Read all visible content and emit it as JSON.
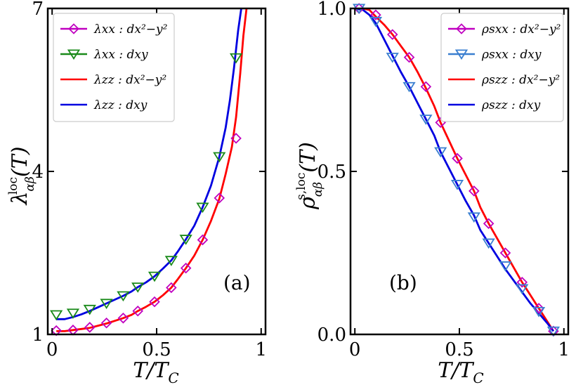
{
  "chart_data": [
    {
      "type": "line",
      "panel": "(a)",
      "xlabel": "T/T_C",
      "ylabel": "λ^loc_αβ(T)",
      "xlim": [
        0,
        1
      ],
      "ylim": [
        1,
        7
      ],
      "xticks": [
        0,
        0.5,
        1
      ],
      "xtick_labels": [
        "0",
        "0.5",
        "1"
      ],
      "yticks": [
        1,
        4,
        7
      ],
      "ytick_labels": [
        "1",
        "4",
        "7"
      ],
      "legend_position": "top-left",
      "series": [
        {
          "name": "λ_xx : d_{x²−y²}",
          "legend_label": "λxx : dx²−y²",
          "style": "markers",
          "marker": "diamond",
          "color": "#c000c0",
          "x": [
            0.02,
            0.1,
            0.18,
            0.26,
            0.34,
            0.41,
            0.49,
            0.57,
            0.64,
            0.72,
            0.8,
            0.88
          ],
          "y": [
            1.07,
            1.08,
            1.13,
            1.21,
            1.3,
            1.43,
            1.6,
            1.86,
            2.22,
            2.74,
            3.51,
            4.61
          ]
        },
        {
          "name": "λ_xx : d_xy",
          "legend_label": "λxx : dxy",
          "style": "markers",
          "marker": "triangle-down",
          "color": "#1a8a1a",
          "x": [
            0.02,
            0.1,
            0.18,
            0.26,
            0.34,
            0.41,
            0.49,
            0.57,
            0.64,
            0.72,
            0.8,
            0.88
          ],
          "y": [
            1.36,
            1.39,
            1.46,
            1.57,
            1.71,
            1.87,
            2.07,
            2.36,
            2.75,
            3.34,
            4.27,
            6.09
          ]
        },
        {
          "name": "λ_zz : d_{x²−y²}",
          "legend_label": "λzz : dx²−y²",
          "style": "line",
          "color": "#ff0000",
          "x": [
            0.02,
            0.06,
            0.1,
            0.14,
            0.18,
            0.22,
            0.26,
            0.3,
            0.34,
            0.38,
            0.41,
            0.45,
            0.49,
            0.53,
            0.57,
            0.6,
            0.64,
            0.68,
            0.72,
            0.76,
            0.8,
            0.83,
            0.86,
            0.88,
            0.9,
            0.915,
            0.93
          ],
          "y": [
            1.06,
            1.06,
            1.08,
            1.1,
            1.12,
            1.16,
            1.2,
            1.25,
            1.3,
            1.36,
            1.43,
            1.51,
            1.6,
            1.72,
            1.86,
            2.01,
            2.22,
            2.45,
            2.74,
            3.09,
            3.5,
            3.95,
            4.45,
            5.0,
            5.8,
            6.5,
            7.0
          ]
        },
        {
          "name": "λ_zz : d_xy",
          "legend_label": "λzz : dxy",
          "style": "line",
          "color": "#0000e0",
          "x": [
            0.02,
            0.06,
            0.1,
            0.14,
            0.18,
            0.22,
            0.26,
            0.3,
            0.34,
            0.38,
            0.41,
            0.45,
            0.49,
            0.53,
            0.57,
            0.6,
            0.64,
            0.68,
            0.72,
            0.76,
            0.8,
            0.83,
            0.85,
            0.87,
            0.89,
            0.905
          ],
          "y": [
            1.28,
            1.28,
            1.32,
            1.37,
            1.43,
            1.5,
            1.57,
            1.64,
            1.71,
            1.79,
            1.87,
            1.96,
            2.07,
            2.21,
            2.36,
            2.52,
            2.75,
            3.0,
            3.34,
            3.74,
            4.27,
            4.8,
            5.3,
            5.9,
            6.6,
            7.0
          ]
        }
      ]
    },
    {
      "type": "line",
      "panel": "(b)",
      "xlabel": "T/T_C",
      "ylabel": "ρ^{s,loc}_αβ(T)",
      "xlim": [
        0,
        1
      ],
      "ylim": [
        0,
        1
      ],
      "xticks": [
        0,
        0.5,
        1
      ],
      "xtick_labels": [
        "0",
        "0.5",
        "1"
      ],
      "yticks": [
        0,
        0.5,
        1
      ],
      "ytick_labels": [
        "0.0",
        "0.5",
        "1.0"
      ],
      "legend_position": "top-right",
      "series": [
        {
          "name": "ρ^s_xx : d_{x²−y²}",
          "legend_label": "ρsxx : dx²−y²",
          "style": "markers",
          "marker": "diamond",
          "color": "#c000c0",
          "x": [
            0.02,
            0.1,
            0.18,
            0.26,
            0.34,
            0.41,
            0.49,
            0.57,
            0.64,
            0.72,
            0.8,
            0.88,
            0.95
          ],
          "y": [
            1.0,
            0.98,
            0.92,
            0.85,
            0.76,
            0.65,
            0.54,
            0.44,
            0.34,
            0.25,
            0.16,
            0.08,
            0.01
          ]
        },
        {
          "name": "ρ^s_xx : d_xy",
          "legend_label": "ρsxx : dxy",
          "style": "markers",
          "marker": "triangle-down",
          "color": "#3a7fd0",
          "x": [
            0.02,
            0.1,
            0.18,
            0.26,
            0.34,
            0.41,
            0.49,
            0.57,
            0.64,
            0.72,
            0.8,
            0.88,
            0.95
          ],
          "y": [
            1.0,
            0.96,
            0.85,
            0.76,
            0.66,
            0.56,
            0.46,
            0.36,
            0.28,
            0.21,
            0.14,
            0.07,
            0.01
          ]
        },
        {
          "name": "ρ^s_zz : d_{x²−y²}",
          "legend_label": "ρszz : dx²−y²",
          "style": "line",
          "color": "#ff0000",
          "x": [
            0.0,
            0.04,
            0.07,
            0.1,
            0.14,
            0.18,
            0.22,
            0.26,
            0.3,
            0.34,
            0.38,
            0.41,
            0.45,
            0.49,
            0.53,
            0.57,
            0.6,
            0.64,
            0.68,
            0.72,
            0.76,
            0.8,
            0.84,
            0.88,
            0.92,
            0.95
          ],
          "y": [
            1.0,
            1.0,
            0.995,
            0.975,
            0.95,
            0.92,
            0.885,
            0.85,
            0.805,
            0.755,
            0.7,
            0.65,
            0.595,
            0.54,
            0.49,
            0.44,
            0.39,
            0.34,
            0.295,
            0.25,
            0.205,
            0.16,
            0.12,
            0.08,
            0.04,
            0.01
          ]
        },
        {
          "name": "ρ^s_zz : d_xy",
          "legend_label": "ρszz : dxy",
          "style": "line",
          "color": "#0000e0",
          "x": [
            0.0,
            0.04,
            0.07,
            0.1,
            0.14,
            0.18,
            0.22,
            0.26,
            0.3,
            0.34,
            0.38,
            0.41,
            0.45,
            0.49,
            0.53,
            0.57,
            0.6,
            0.64,
            0.68,
            0.72,
            0.76,
            0.8,
            0.84,
            0.88,
            0.92,
            0.95
          ],
          "y": [
            1.0,
            0.995,
            0.98,
            0.955,
            0.905,
            0.855,
            0.805,
            0.76,
            0.71,
            0.66,
            0.61,
            0.56,
            0.51,
            0.46,
            0.41,
            0.365,
            0.32,
            0.28,
            0.24,
            0.2,
            0.165,
            0.13,
            0.095,
            0.065,
            0.035,
            0.01
          ]
        }
      ]
    }
  ]
}
